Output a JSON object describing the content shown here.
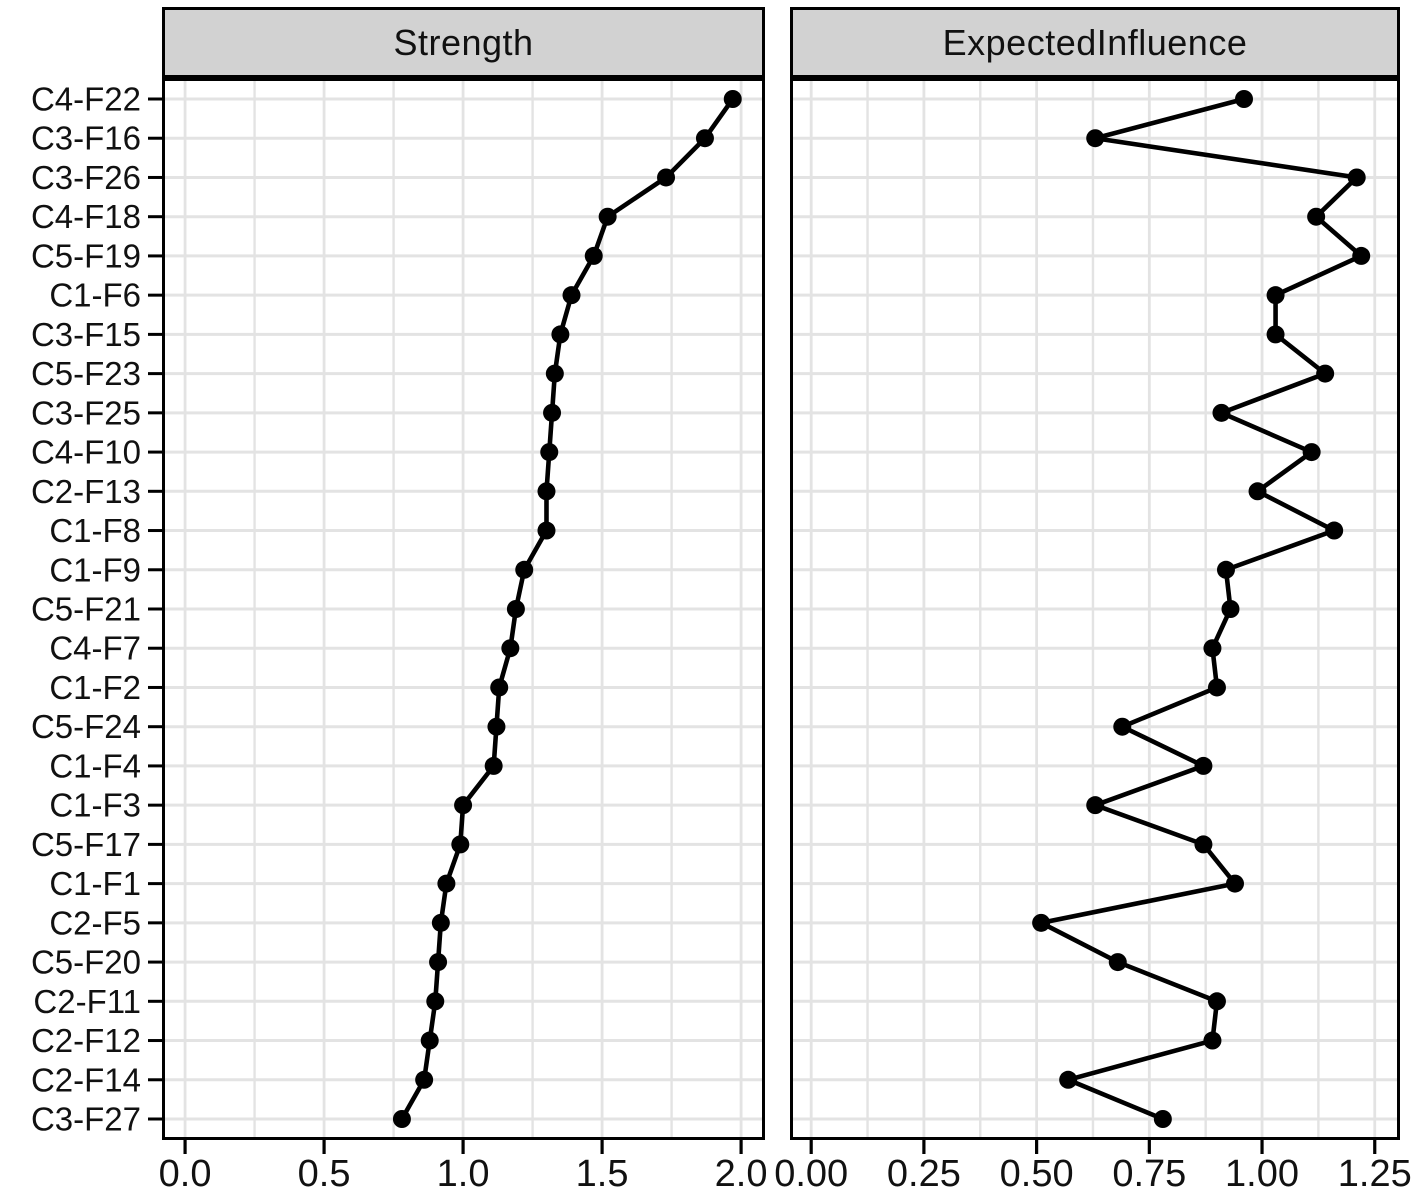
{
  "chart_data": {
    "type": "line",
    "subtype": "dot-line-centrality-plot",
    "orientation": "horizontal",
    "categories": [
      "C4-F22",
      "C3-F16",
      "C3-F26",
      "C4-F18",
      "C5-F19",
      "C1-F6",
      "C3-F15",
      "C5-F23",
      "C3-F25",
      "C4-F10",
      "C2-F13",
      "C1-F8",
      "C1-F9",
      "C5-F21",
      "C4-F7",
      "C1-F2",
      "C5-F24",
      "C1-F4",
      "C1-F3",
      "C5-F17",
      "C1-F1",
      "C2-F5",
      "C5-F20",
      "C2-F11",
      "C2-F12",
      "C2-F14",
      "C3-F27"
    ],
    "series": [
      {
        "name": "Strength",
        "values": [
          1.97,
          1.87,
          1.73,
          1.52,
          1.47,
          1.39,
          1.35,
          1.33,
          1.32,
          1.31,
          1.3,
          1.3,
          1.22,
          1.19,
          1.17,
          1.13,
          1.12,
          1.11,
          1.0,
          0.99,
          0.94,
          0.92,
          0.91,
          0.9,
          0.88,
          0.86,
          0.78
        ]
      },
      {
        "name": "ExpectedInfluence",
        "values": [
          0.96,
          0.63,
          1.21,
          1.12,
          1.22,
          1.03,
          1.03,
          1.14,
          0.91,
          1.11,
          0.99,
          1.16,
          0.92,
          0.93,
          0.89,
          0.9,
          0.69,
          0.87,
          0.63,
          0.87,
          0.94,
          0.51,
          0.68,
          0.9,
          0.89,
          0.57,
          0.78
        ]
      }
    ],
    "panels": [
      {
        "title": "Strength",
        "x_tick_labels": [
          "0.0",
          "0.5",
          "1.0",
          "1.5",
          "2.0"
        ],
        "x_tick_values": [
          0,
          0.5,
          1,
          1.5,
          2
        ],
        "x_range": [
          -0.083,
          2.086
        ],
        "minor_step": 0.25
      },
      {
        "title": "ExpectedInfluence",
        "x_tick_labels": [
          "0.00",
          "0.25",
          "0.50",
          "0.75",
          "1.00",
          "1.25"
        ],
        "x_tick_values": [
          0,
          0.25,
          0.5,
          0.75,
          1,
          1.25
        ],
        "x_range": [
          -0.047,
          1.306
        ],
        "minor_step": 0.125
      }
    ],
    "grid": true,
    "legend_position": "none",
    "colors": {
      "point": "#000000",
      "line": "#000000",
      "text": "#111111",
      "strip_bg": "#d2d2d2",
      "panel_border": "#000000",
      "grid": "#e3e3e3"
    }
  }
}
